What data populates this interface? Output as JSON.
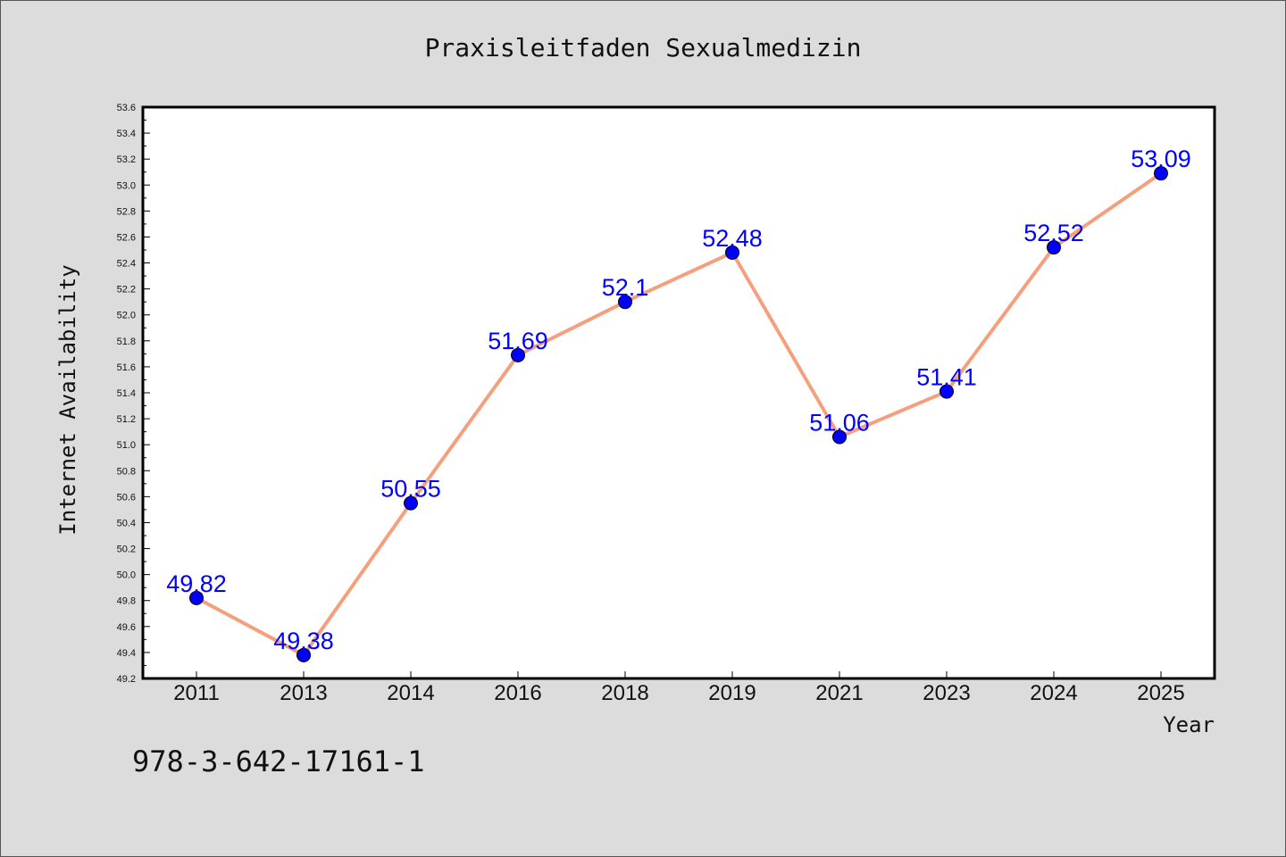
{
  "chart_data": {
    "type": "line",
    "title": "Praxisleitfaden Sexualmedizin",
    "xlabel": "Year",
    "ylabel": "Internet Availability",
    "categories": [
      "2011",
      "2013",
      "2014",
      "2016",
      "2018",
      "2019",
      "2021",
      "2023",
      "2024",
      "2025"
    ],
    "series": [
      {
        "values": [
          49.82,
          49.38,
          50.55,
          51.69,
          52.1,
          52.48,
          51.06,
          51.41,
          52.52,
          53.09
        ]
      }
    ],
    "data_labels": [
      "49.82",
      "49.38",
      "50.55",
      "51.69",
      "52.1",
      "52.48",
      "51.06",
      "51.41",
      "52.52",
      "53.09"
    ],
    "ylim": [
      49.2,
      53.6
    ],
    "yticks": [
      "49.2",
      "49.4",
      "49.6",
      "49.8",
      "50.0",
      "50.2",
      "50.4",
      "50.6",
      "50.8",
      "51.0",
      "51.2",
      "51.4",
      "51.6",
      "51.8",
      "52.0",
      "52.2",
      "52.4",
      "52.6",
      "52.8",
      "53.0",
      "53.2",
      "53.4",
      "53.6"
    ],
    "grid": false,
    "line_color": "#f4a07e",
    "marker_color": "#0000ff",
    "label_color": "#0000ff"
  },
  "footnote": "978-3-642-17161-1"
}
